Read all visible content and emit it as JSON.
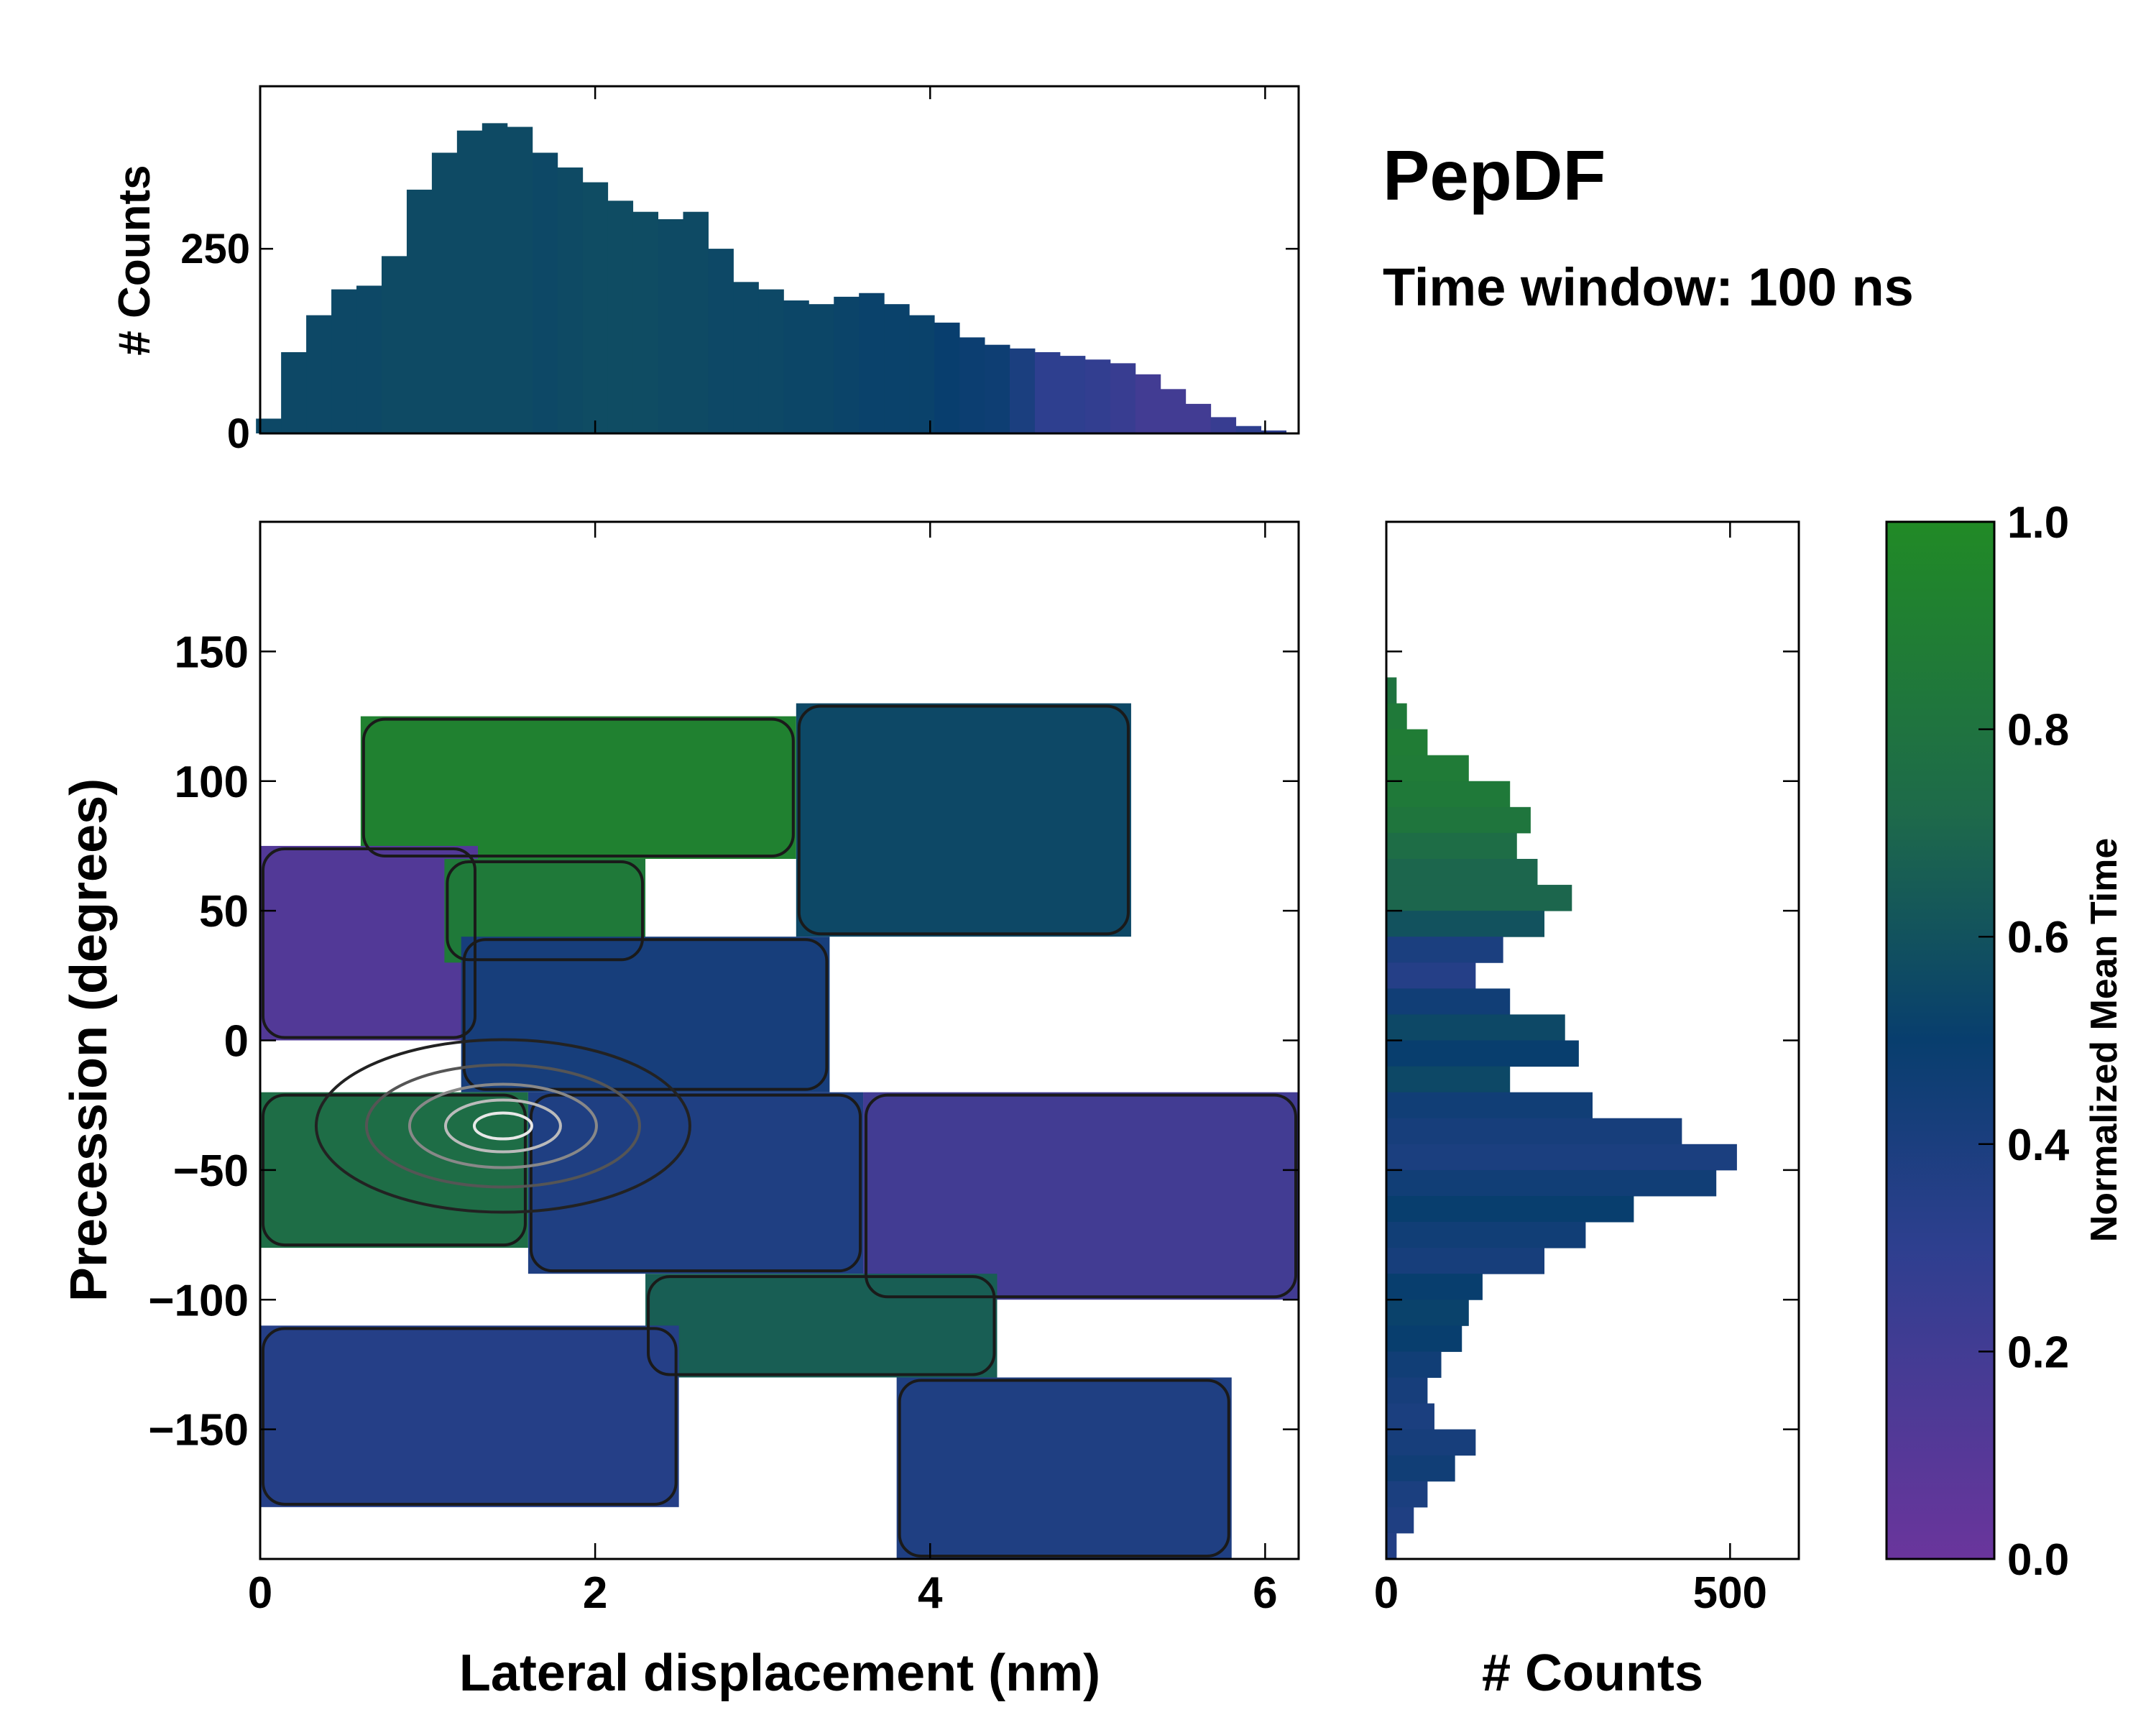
{
  "chart_data": [
    {
      "id": "top-histogram",
      "type": "bar",
      "title": "",
      "xlabel": "",
      "ylabel": "# Counts",
      "xlim": [
        0,
        6.2
      ],
      "ylim": [
        0,
        470
      ],
      "yticks": [
        0,
        250
      ],
      "color_by": "Normalized Mean Time",
      "x": [
        0.05,
        0.2,
        0.35,
        0.5,
        0.65,
        0.8,
        0.95,
        1.1,
        1.25,
        1.4,
        1.55,
        1.7,
        1.85,
        2.0,
        2.15,
        2.3,
        2.45,
        2.6,
        2.75,
        2.9,
        3.05,
        3.2,
        3.35,
        3.5,
        3.65,
        3.8,
        3.95,
        4.1,
        4.25,
        4.4,
        4.55,
        4.7,
        4.85,
        5.0,
        5.15,
        5.3,
        5.45,
        5.6,
        5.75,
        5.9,
        6.05
      ],
      "values": [
        20,
        110,
        160,
        195,
        200,
        240,
        330,
        380,
        410,
        420,
        415,
        380,
        360,
        340,
        315,
        300,
        290,
        300,
        250,
        205,
        195,
        180,
        175,
        185,
        190,
        175,
        160,
        150,
        130,
        120,
        115,
        110,
        105,
        100,
        95,
        80,
        60,
        40,
        22,
        10,
        4
      ],
      "mean_time": [
        0.55,
        0.55,
        0.55,
        0.55,
        0.55,
        0.56,
        0.56,
        0.56,
        0.56,
        0.56,
        0.56,
        0.55,
        0.56,
        0.57,
        0.57,
        0.57,
        0.56,
        0.56,
        0.55,
        0.55,
        0.55,
        0.54,
        0.54,
        0.53,
        0.52,
        0.52,
        0.52,
        0.5,
        0.48,
        0.47,
        0.4,
        0.3,
        0.3,
        0.28,
        0.25,
        0.2,
        0.2,
        0.2,
        0.25,
        0.3,
        0.3
      ]
    },
    {
      "id": "main-heatmap",
      "type": "heatmap",
      "title": "",
      "xlabel": "Lateral displacement (nm)",
      "ylabel": "Precession (degrees)",
      "xlim": [
        0,
        6.2
      ],
      "ylim": [
        -200,
        200
      ],
      "xticks": [
        0,
        2,
        4,
        6
      ],
      "yticks": [
        150,
        100,
        50,
        0,
        -50,
        -100,
        -150
      ],
      "ytick_labels": [
        "150",
        "100",
        "50",
        "0",
        "−50",
        "−100",
        "−150"
      ],
      "color_by": "Normalized Mean Time",
      "regions": [
        {
          "name": "upper-green",
          "x": [
            0.6,
            3.2
          ],
          "y": [
            70,
            125
          ],
          "mean_time": 0.92
        },
        {
          "name": "upper-blue",
          "x": [
            3.2,
            5.2
          ],
          "y": [
            40,
            130
          ],
          "mean_time": 0.55
        },
        {
          "name": "left-purple",
          "x": [
            0.0,
            1.3
          ],
          "y": [
            0,
            75
          ],
          "mean_time": 0.12
        },
        {
          "name": "mid-green",
          "x": [
            1.1,
            2.3
          ],
          "y": [
            30,
            70
          ],
          "mean_time": 0.85
        },
        {
          "name": "center-blue",
          "x": [
            1.2,
            3.4
          ],
          "y": [
            -20,
            40
          ],
          "mean_time": 0.42
        },
        {
          "name": "left-green",
          "x": [
            0.0,
            1.6
          ],
          "y": [
            -80,
            -20
          ],
          "mean_time": 0.75
        },
        {
          "name": "center-dark",
          "x": [
            1.6,
            3.6
          ],
          "y": [
            -90,
            -20
          ],
          "mean_time": 0.38
        },
        {
          "name": "right-purple",
          "x": [
            3.6,
            6.2
          ],
          "y": [
            -100,
            -20
          ],
          "mean_time": 0.2
        },
        {
          "name": "lower-teal",
          "x": [
            2.3,
            4.4
          ],
          "y": [
            -130,
            -90
          ],
          "mean_time": 0.66
        },
        {
          "name": "lower-left-blue",
          "x": [
            0.0,
            2.5
          ],
          "y": [
            -180,
            -110
          ],
          "mean_time": 0.35
        },
        {
          "name": "lower-right-blue",
          "x": [
            3.8,
            5.8
          ],
          "y": [
            -200,
            -130
          ],
          "mean_time": 0.38
        }
      ],
      "contour_peak": {
        "x": 1.45,
        "y": -33,
        "level": "max"
      }
    },
    {
      "id": "right-histogram",
      "type": "bar",
      "orientation": "horizontal",
      "title": "",
      "xlabel": "# Counts",
      "ylabel": "",
      "xlim": [
        0,
        600
      ],
      "ylim": [
        -200,
        200
      ],
      "xticks": [
        0,
        500
      ],
      "color_by": "Normalized Mean Time",
      "y": [
        135,
        125,
        115,
        105,
        95,
        85,
        75,
        65,
        55,
        45,
        35,
        25,
        15,
        5,
        -5,
        -15,
        -25,
        -35,
        -45,
        -55,
        -65,
        -75,
        -85,
        -95,
        -105,
        -115,
        -125,
        -135,
        -145,
        -155,
        -165,
        -175,
        -185,
        -195
      ],
      "values": [
        15,
        30,
        60,
        120,
        180,
        210,
        190,
        220,
        270,
        230,
        170,
        130,
        180,
        260,
        280,
        180,
        300,
        430,
        510,
        480,
        360,
        290,
        230,
        140,
        120,
        110,
        80,
        60,
        70,
        130,
        100,
        60,
        40,
        15
      ],
      "mean_time": [
        0.8,
        0.85,
        0.88,
        0.87,
        0.85,
        0.82,
        0.75,
        0.7,
        0.7,
        0.6,
        0.4,
        0.35,
        0.45,
        0.55,
        0.5,
        0.55,
        0.45,
        0.42,
        0.4,
        0.45,
        0.5,
        0.45,
        0.42,
        0.5,
        0.52,
        0.5,
        0.45,
        0.42,
        0.4,
        0.42,
        0.45,
        0.4,
        0.38,
        0.36
      ]
    },
    {
      "id": "colorbar",
      "type": "colorbar",
      "label": "Normalized Mean Time",
      "range": [
        0.0,
        1.0
      ],
      "ticks": [
        0.0,
        0.2,
        0.4,
        0.6,
        0.8,
        1.0
      ],
      "tick_labels": [
        "0.0",
        "0.2",
        "0.4",
        "0.6",
        "0.8",
        "1.0"
      ],
      "stops": [
        "#6a359c",
        "#2e3f8f",
        "#083e6e",
        "#1e6a4a",
        "#218a26"
      ]
    }
  ],
  "annotation": {
    "title": "PepDF",
    "subtitle": "Time window: 100 ns"
  }
}
